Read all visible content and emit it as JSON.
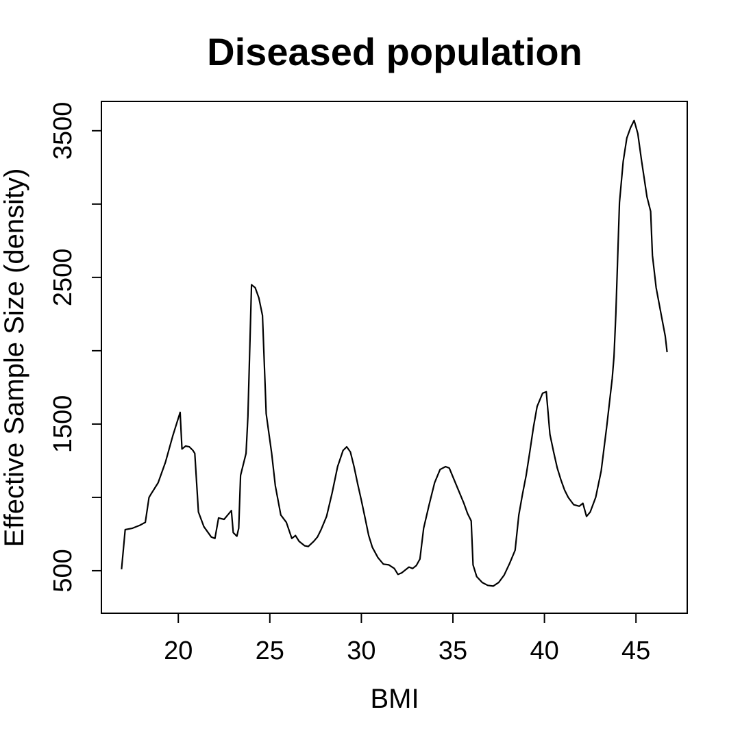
{
  "chart_data": {
    "type": "line",
    "title": "Diseased population",
    "xlabel": "BMI",
    "ylabel": "Effective Sample Size (density)",
    "xlim": [
      15.8,
      47.8
    ],
    "ylim": [
      210,
      3700
    ],
    "x_ticks": [
      20,
      25,
      30,
      35,
      40,
      45
    ],
    "x_tick_labels": [
      "20",
      "25",
      "30",
      "35",
      "40",
      "45"
    ],
    "y_ticks": [
      500,
      1000,
      1500,
      2000,
      2500,
      3000,
      3500
    ],
    "y_tick_labels": [
      "500",
      "",
      "1500",
      "",
      "2500",
      "",
      "3500"
    ],
    "grid": false,
    "series": [
      {
        "x": [
          16.9,
          17.1,
          17.5,
          17.9,
          18.2,
          18.4,
          18.5,
          18.9,
          19.3,
          19.7,
          20.1,
          20.2,
          20.4,
          20.6,
          20.8,
          20.9,
          21.1,
          21.4,
          21.8,
          22.0,
          22.2,
          22.5,
          22.7,
          22.9,
          23.0,
          23.2,
          23.3,
          23.4,
          23.7,
          23.8,
          24.0,
          24.2,
          24.4,
          24.6,
          24.8,
          25.1,
          25.3,
          25.6,
          25.9,
          26.2,
          26.4,
          26.6,
          26.9,
          27.1,
          27.4,
          27.6,
          27.8,
          28.1,
          28.4,
          28.7,
          29.0,
          29.2,
          29.4,
          29.6,
          29.8,
          30.0,
          30.2,
          30.4,
          30.6,
          30.9,
          31.2,
          31.5,
          31.8,
          32.0,
          32.2,
          32.4,
          32.6,
          32.8,
          33.0,
          33.2,
          33.4,
          33.7,
          34.0,
          34.3,
          34.6,
          34.8,
          35.0,
          35.3,
          35.6,
          35.8,
          36.0,
          36.1,
          36.3,
          36.6,
          36.9,
          37.2,
          37.5,
          37.8,
          38.1,
          38.4,
          38.6,
          38.8,
          39.0,
          39.2,
          39.4,
          39.6,
          39.9,
          40.1,
          40.3,
          40.5,
          40.7,
          40.9,
          41.1,
          41.3,
          41.6,
          41.9,
          42.1,
          42.3,
          42.5,
          42.8,
          43.1,
          43.4,
          43.7,
          43.8,
          43.9,
          44.1,
          44.3,
          44.5,
          44.7,
          44.9,
          45.1,
          45.3,
          45.6,
          45.8,
          45.9,
          46.1,
          46.4,
          46.6,
          46.7
        ],
        "y": [
          510,
          780,
          790,
          810,
          830,
          1000,
          1020,
          1100,
          1240,
          1420,
          1580,
          1330,
          1350,
          1345,
          1320,
          1300,
          900,
          800,
          730,
          720,
          860,
          850,
          880,
          910,
          760,
          735,
          790,
          1150,
          1300,
          1550,
          2450,
          2430,
          2360,
          2240,
          1570,
          1300,
          1080,
          880,
          830,
          720,
          740,
          700,
          670,
          665,
          700,
          730,
          780,
          870,
          1030,
          1210,
          1320,
          1345,
          1310,
          1210,
          1090,
          980,
          860,
          740,
          660,
          590,
          545,
          540,
          515,
          475,
          485,
          505,
          525,
          515,
          535,
          580,
          790,
          950,
          1100,
          1190,
          1210,
          1200,
          1140,
          1050,
          960,
          890,
          840,
          540,
          460,
          420,
          400,
          395,
          420,
          470,
          550,
          640,
          880,
          1020,
          1150,
          1310,
          1480,
          1620,
          1710,
          1720,
          1430,
          1310,
          1200,
          1120,
          1050,
          1000,
          950,
          940,
          960,
          870,
          900,
          1000,
          1180,
          1480,
          1810,
          1960,
          2250,
          3010,
          3290,
          3450,
          3520,
          3570,
          3480,
          3300,
          3050,
          2950,
          2650,
          2430,
          2230,
          2100,
          1990
        ]
      }
    ]
  }
}
